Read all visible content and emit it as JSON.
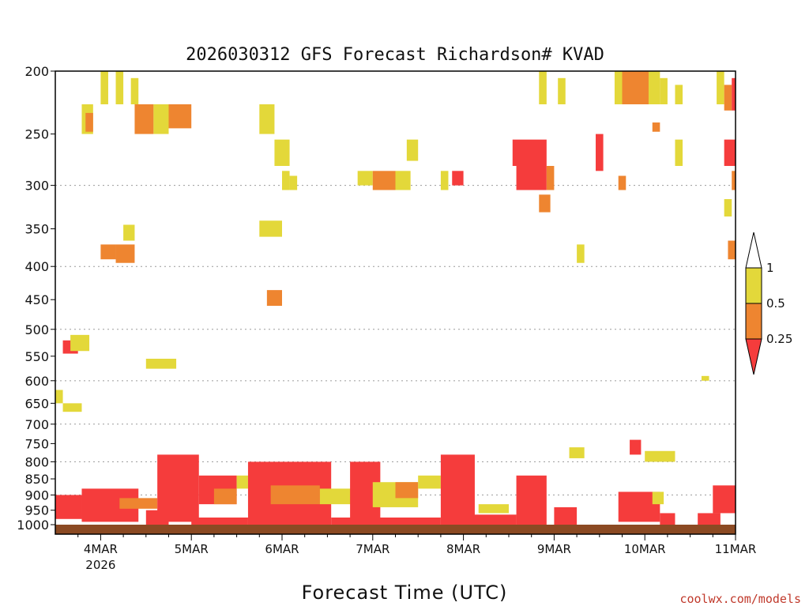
{
  "chart_data": {
    "type": "heatmap",
    "title": "2026030312 GFS Forecast Richardson# KVAD",
    "xlabel": "Forecast Time (UTC)",
    "ylabel": "",
    "y_scale": "log-pressure",
    "ylim": [
      1000,
      200
    ],
    "yticks": [
      200,
      250,
      300,
      350,
      400,
      450,
      500,
      550,
      600,
      650,
      700,
      750,
      800,
      850,
      900,
      950,
      1000
    ],
    "grid_levels": [
      300,
      400,
      500,
      600,
      700,
      800,
      900
    ],
    "xlim": [
      "2026-03-03T12:00Z",
      "2026-03-11T00:00Z"
    ],
    "xticks": [
      {
        "label": "4MAR",
        "sub": "2026",
        "t": "2026-03-04T00:00Z"
      },
      {
        "label": "5MAR",
        "sub": "",
        "t": "2026-03-05T00:00Z"
      },
      {
        "label": "6MAR",
        "sub": "",
        "t": "2026-03-06T00:00Z"
      },
      {
        "label": "7MAR",
        "sub": "",
        "t": "2026-03-07T00:00Z"
      },
      {
        "label": "8MAR",
        "sub": "",
        "t": "2026-03-08T00:00Z"
      },
      {
        "label": "9MAR",
        "sub": "",
        "t": "2026-03-09T00:00Z"
      },
      {
        "label": "10MAR",
        "sub": "",
        "t": "2026-03-10T00:00Z"
      },
      {
        "label": "11MAR",
        "sub": "",
        "t": "2026-03-11T00:00Z"
      }
    ],
    "colorbar": {
      "levels": [
        "1",
        "0.5",
        "0.25"
      ],
      "bins": [
        {
          "range": "0.5-1",
          "color": "#e3d83a"
        },
        {
          "range": "0.25-0.5",
          "color": "#ee8530"
        },
        {
          "range": "<0.25",
          "color": "#f53c3c"
        }
      ]
    },
    "ground_color": "#8b4a23",
    "patches": [
      {
        "t0": "2026-03-03T12:00Z",
        "t1": "2026-03-03T19:00Z",
        "p0": 900,
        "p1": 980,
        "bin": "<0.25"
      },
      {
        "t0": "2026-03-03T19:00Z",
        "t1": "2026-03-04T10:00Z",
        "p0": 880,
        "p1": 990,
        "bin": "<0.25"
      },
      {
        "t0": "2026-03-04T05:00Z",
        "t1": "2026-03-04T15:00Z",
        "p0": 910,
        "p1": 945,
        "bin": "0.25-0.5"
      },
      {
        "t0": "2026-03-04T12:00Z",
        "t1": "2026-03-04T18:00Z",
        "p0": 950,
        "p1": 1000,
        "bin": "<0.25"
      },
      {
        "t0": "2026-03-04T15:00Z",
        "t1": "2026-03-05T02:00Z",
        "p0": 780,
        "p1": 990,
        "bin": "<0.25"
      },
      {
        "t0": "2026-03-05T02:00Z",
        "t1": "2026-03-05T12:00Z",
        "p0": 840,
        "p1": 930,
        "bin": "<0.25"
      },
      {
        "t0": "2026-03-05T06:00Z",
        "t1": "2026-03-05T12:00Z",
        "p0": 880,
        "p1": 930,
        "bin": "0.25-0.5"
      },
      {
        "t0": "2026-03-05T12:00Z",
        "t1": "2026-03-05T15:00Z",
        "p0": 840,
        "p1": 880,
        "bin": "0.5-1"
      },
      {
        "t0": "2026-03-05T00:00Z",
        "t1": "2026-03-05T15:00Z",
        "p0": 975,
        "p1": 1000,
        "bin": "<0.25"
      },
      {
        "t0": "2026-03-05T15:00Z",
        "t1": "2026-03-06T13:00Z",
        "p0": 800,
        "p1": 1000,
        "bin": "<0.25"
      },
      {
        "t0": "2026-03-05T21:00Z",
        "t1": "2026-03-06T10:00Z",
        "p0": 870,
        "p1": 930,
        "bin": "0.25-0.5"
      },
      {
        "t0": "2026-03-06T10:00Z",
        "t1": "2026-03-06T20:00Z",
        "p0": 880,
        "p1": 930,
        "bin": "0.5-1"
      },
      {
        "t0": "2026-03-06T13:00Z",
        "t1": "2026-03-06T20:00Z",
        "p0": 975,
        "p1": 1000,
        "bin": "<0.25"
      },
      {
        "t0": "2026-03-06T18:00Z",
        "t1": "2026-03-07T02:00Z",
        "p0": 800,
        "p1": 1000,
        "bin": "<0.25"
      },
      {
        "t0": "2026-03-07T00:00Z",
        "t1": "2026-03-07T12:00Z",
        "p0": 860,
        "p1": 940,
        "bin": "0.5-1"
      },
      {
        "t0": "2026-03-07T06:00Z",
        "t1": "2026-03-07T12:00Z",
        "p0": 860,
        "p1": 910,
        "bin": "0.25-0.5"
      },
      {
        "t0": "2026-03-07T12:00Z",
        "t1": "2026-03-07T18:00Z",
        "p0": 840,
        "p1": 880,
        "bin": "0.5-1"
      },
      {
        "t0": "2026-03-07T00:00Z",
        "t1": "2026-03-07T18:00Z",
        "p0": 975,
        "p1": 1000,
        "bin": "<0.25"
      },
      {
        "t0": "2026-03-07T18:00Z",
        "t1": "2026-03-08T03:00Z",
        "p0": 780,
        "p1": 1000,
        "bin": "<0.25"
      },
      {
        "t0": "2026-03-08T04:00Z",
        "t1": "2026-03-08T12:00Z",
        "p0": 930,
        "p1": 960,
        "bin": "0.5-1"
      },
      {
        "t0": "2026-03-08T02:00Z",
        "t1": "2026-03-08T14:00Z",
        "p0": 965,
        "p1": 1000,
        "bin": "<0.25"
      },
      {
        "t0": "2026-03-08T14:00Z",
        "t1": "2026-03-08T22:00Z",
        "p0": 840,
        "p1": 1000,
        "bin": "<0.25"
      },
      {
        "t0": "2026-03-09T00:00Z",
        "t1": "2026-03-09T06:00Z",
        "p0": 940,
        "p1": 1000,
        "bin": "<0.25"
      },
      {
        "t0": "2026-03-09T17:00Z",
        "t1": "2026-03-10T04:00Z",
        "p0": 890,
        "p1": 990,
        "bin": "<0.25"
      },
      {
        "t0": "2026-03-10T02:00Z",
        "t1": "2026-03-10T05:00Z",
        "p0": 890,
        "p1": 930,
        "bin": "0.5-1"
      },
      {
        "t0": "2026-03-10T04:00Z",
        "t1": "2026-03-10T08:00Z",
        "p0": 960,
        "p1": 1000,
        "bin": "<0.25"
      },
      {
        "t0": "2026-03-10T14:00Z",
        "t1": "2026-03-10T20:00Z",
        "p0": 960,
        "p1": 1000,
        "bin": "<0.25"
      },
      {
        "t0": "2026-03-10T18:00Z",
        "t1": "2026-03-11T00:00Z",
        "p0": 870,
        "p1": 960,
        "bin": "<0.25"
      },
      {
        "t0": "2026-03-09T04:00Z",
        "t1": "2026-03-09T08:00Z",
        "p0": 760,
        "p1": 790,
        "bin": "0.5-1"
      },
      {
        "t0": "2026-03-09T20:00Z",
        "t1": "2026-03-09T23:00Z",
        "p0": 740,
        "p1": 780,
        "bin": "<0.25"
      },
      {
        "t0": "2026-03-10T00:00Z",
        "t1": "2026-03-10T08:00Z",
        "p0": 770,
        "p1": 800,
        "bin": "0.5-1"
      },
      {
        "t0": "2026-03-08T13:00Z",
        "t1": "2026-03-08T22:00Z",
        "p0": 255,
        "p1": 280,
        "bin": "<0.25"
      },
      {
        "t0": "2026-03-08T14:00Z",
        "t1": "2026-03-08T22:00Z",
        "p0": 280,
        "p1": 305,
        "bin": "<0.25"
      },
      {
        "t0": "2026-03-08T22:00Z",
        "t1": "2026-03-09T00:00Z",
        "p0": 280,
        "p1": 305,
        "bin": "0.25-0.5"
      },
      {
        "t0": "2026-03-08T20:00Z",
        "t1": "2026-03-08T23:00Z",
        "p0": 310,
        "p1": 330,
        "bin": "0.25-0.5"
      },
      {
        "t0": "2026-03-08T20:00Z",
        "t1": "2026-03-08T22:00Z",
        "p0": 200,
        "p1": 225,
        "bin": "0.5-1"
      },
      {
        "t0": "2026-03-09T01:00Z",
        "t1": "2026-03-09T03:00Z",
        "p0": 205,
        "p1": 225,
        "bin": "0.5-1"
      },
      {
        "t0": "2026-03-09T11:00Z",
        "t1": "2026-03-09T13:00Z",
        "p0": 250,
        "p1": 285,
        "bin": "<0.25"
      },
      {
        "t0": "2026-03-09T16:00Z",
        "t1": "2026-03-09T18:00Z",
        "p0": 200,
        "p1": 225,
        "bin": "0.5-1"
      },
      {
        "t0": "2026-03-09T18:00Z",
        "t1": "2026-03-10T01:00Z",
        "p0": 200,
        "p1": 225,
        "bin": "0.25-0.5"
      },
      {
        "t0": "2026-03-10T01:00Z",
        "t1": "2026-03-10T04:00Z",
        "p0": 200,
        "p1": 225,
        "bin": "0.5-1"
      },
      {
        "t0": "2026-03-09T17:00Z",
        "t1": "2026-03-09T19:00Z",
        "p0": 290,
        "p1": 305,
        "bin": "0.25-0.5"
      },
      {
        "t0": "2026-03-10T04:00Z",
        "t1": "2026-03-10T06:00Z",
        "p0": 205,
        "p1": 225,
        "bin": "0.5-1"
      },
      {
        "t0": "2026-03-10T08:00Z",
        "t1": "2026-03-10T10:00Z",
        "p0": 210,
        "p1": 225,
        "bin": "0.5-1"
      },
      {
        "t0": "2026-03-10T02:00Z",
        "t1": "2026-03-10T04:00Z",
        "p0": 240,
        "p1": 248,
        "bin": "0.25-0.5"
      },
      {
        "t0": "2026-03-10T08:00Z",
        "t1": "2026-03-10T10:00Z",
        "p0": 255,
        "p1": 280,
        "bin": "0.5-1"
      },
      {
        "t0": "2026-03-10T19:00Z",
        "t1": "2026-03-10T21:00Z",
        "p0": 200,
        "p1": 225,
        "bin": "0.5-1"
      },
      {
        "t0": "2026-03-10T21:00Z",
        "t1": "2026-03-10T23:00Z",
        "p0": 210,
        "p1": 230,
        "bin": "0.25-0.5"
      },
      {
        "t0": "2026-03-10T23:00Z",
        "t1": "2026-03-11T00:00Z",
        "p0": 205,
        "p1": 230,
        "bin": "<0.25"
      },
      {
        "t0": "2026-03-10T21:00Z",
        "t1": "2026-03-11T00:00Z",
        "p0": 255,
        "p1": 280,
        "bin": "<0.25"
      },
      {
        "t0": "2026-03-10T23:00Z",
        "t1": "2026-03-11T00:00Z",
        "p0": 285,
        "p1": 305,
        "bin": "0.25-0.5"
      },
      {
        "t0": "2026-03-10T21:00Z",
        "t1": "2026-03-10T23:00Z",
        "p0": 315,
        "p1": 335,
        "bin": "0.5-1"
      },
      {
        "t0": "2026-03-10T22:00Z",
        "t1": "2026-03-11T00:00Z",
        "p0": 365,
        "p1": 390,
        "bin": "0.25-0.5"
      },
      {
        "t0": "2026-03-10T15:00Z",
        "t1": "2026-03-10T17:00Z",
        "p0": 590,
        "p1": 600,
        "bin": "0.5-1"
      },
      {
        "t0": "2026-03-09T06:00Z",
        "t1": "2026-03-09T08:00Z",
        "p0": 370,
        "p1": 395,
        "bin": "0.5-1"
      },
      {
        "t0": "2026-03-03T19:00Z",
        "t1": "2026-03-03T22:00Z",
        "p0": 225,
        "p1": 250,
        "bin": "0.5-1"
      },
      {
        "t0": "2026-03-03T20:00Z",
        "t1": "2026-03-03T22:00Z",
        "p0": 232,
        "p1": 248,
        "bin": "0.25-0.5"
      },
      {
        "t0": "2026-03-04T09:00Z",
        "t1": "2026-03-04T14:00Z",
        "p0": 225,
        "p1": 250,
        "bin": "0.25-0.5"
      },
      {
        "t0": "2026-03-04T14:00Z",
        "t1": "2026-03-04T18:00Z",
        "p0": 225,
        "p1": 250,
        "bin": "0.5-1"
      },
      {
        "t0": "2026-03-04T18:00Z",
        "t1": "2026-03-05T00:00Z",
        "p0": 225,
        "p1": 245,
        "bin": "0.25-0.5"
      },
      {
        "t0": "2026-03-04T00:00Z",
        "t1": "2026-03-04T02:00Z",
        "p0": 200,
        "p1": 225,
        "bin": "0.5-1"
      },
      {
        "t0": "2026-03-04T04:00Z",
        "t1": "2026-03-04T06:00Z",
        "p0": 200,
        "p1": 225,
        "bin": "0.5-1"
      },
      {
        "t0": "2026-03-04T08:00Z",
        "t1": "2026-03-04T10:00Z",
        "p0": 205,
        "p1": 225,
        "bin": "0.5-1"
      },
      {
        "t0": "2026-03-05T18:00Z",
        "t1": "2026-03-05T22:00Z",
        "p0": 225,
        "p1": 250,
        "bin": "0.5-1"
      },
      {
        "t0": "2026-03-05T22:00Z",
        "t1": "2026-03-06T02:00Z",
        "p0": 255,
        "p1": 280,
        "bin": "0.5-1"
      },
      {
        "t0": "2026-03-06T00:00Z",
        "t1": "2026-03-06T02:00Z",
        "p0": 285,
        "p1": 305,
        "bin": "0.5-1"
      },
      {
        "t0": "2026-03-06T02:00Z",
        "t1": "2026-03-06T04:00Z",
        "p0": 290,
        "p1": 305,
        "bin": "0.5-1"
      },
      {
        "t0": "2026-03-06T20:00Z",
        "t1": "2026-03-07T00:00Z",
        "p0": 285,
        "p1": 300,
        "bin": "0.5-1"
      },
      {
        "t0": "2026-03-07T00:00Z",
        "t1": "2026-03-07T06:00Z",
        "p0": 285,
        "p1": 305,
        "bin": "0.25-0.5"
      },
      {
        "t0": "2026-03-07T06:00Z",
        "t1": "2026-03-07T10:00Z",
        "p0": 285,
        "p1": 305,
        "bin": "0.5-1"
      },
      {
        "t0": "2026-03-07T09:00Z",
        "t1": "2026-03-07T12:00Z",
        "p0": 255,
        "p1": 275,
        "bin": "0.5-1"
      },
      {
        "t0": "2026-03-07T18:00Z",
        "t1": "2026-03-07T20:00Z",
        "p0": 285,
        "p1": 305,
        "bin": "0.5-1"
      },
      {
        "t0": "2026-03-07T21:00Z",
        "t1": "2026-03-08T00:00Z",
        "p0": 285,
        "p1": 300,
        "bin": "<0.25"
      },
      {
        "t0": "2026-03-04T00:00Z",
        "t1": "2026-03-04T04:00Z",
        "p0": 370,
        "p1": 390,
        "bin": "0.25-0.5"
      },
      {
        "t0": "2026-03-04T04:00Z",
        "t1": "2026-03-04T09:00Z",
        "p0": 370,
        "p1": 395,
        "bin": "0.25-0.5"
      },
      {
        "t0": "2026-03-04T06:00Z",
        "t1": "2026-03-04T09:00Z",
        "p0": 345,
        "p1": 365,
        "bin": "0.5-1"
      },
      {
        "t0": "2026-03-05T18:00Z",
        "t1": "2026-03-06T00:00Z",
        "p0": 340,
        "p1": 360,
        "bin": "0.5-1"
      },
      {
        "t0": "2026-03-05T20:00Z",
        "t1": "2026-03-05T24:00Z",
        "p0": 435,
        "p1": 460,
        "bin": "0.25-0.5"
      },
      {
        "t0": "2026-03-03T14:00Z",
        "t1": "2026-03-03T18:00Z",
        "p0": 520,
        "p1": 545,
        "bin": "<0.25"
      },
      {
        "t0": "2026-03-03T16:00Z",
        "t1": "2026-03-03T21:00Z",
        "p0": 510,
        "p1": 540,
        "bin": "0.5-1"
      },
      {
        "t0": "2026-03-04T12:00Z",
        "t1": "2026-03-04T20:00Z",
        "p0": 555,
        "p1": 575,
        "bin": "0.5-1"
      },
      {
        "t0": "2026-03-03T12:00Z",
        "t1": "2026-03-03T14:00Z",
        "p0": 620,
        "p1": 650,
        "bin": "0.5-1"
      },
      {
        "t0": "2026-03-03T14:00Z",
        "t1": "2026-03-03T19:00Z",
        "p0": 650,
        "p1": 670,
        "bin": "0.5-1"
      }
    ]
  },
  "credit": "coolwx.com/models"
}
